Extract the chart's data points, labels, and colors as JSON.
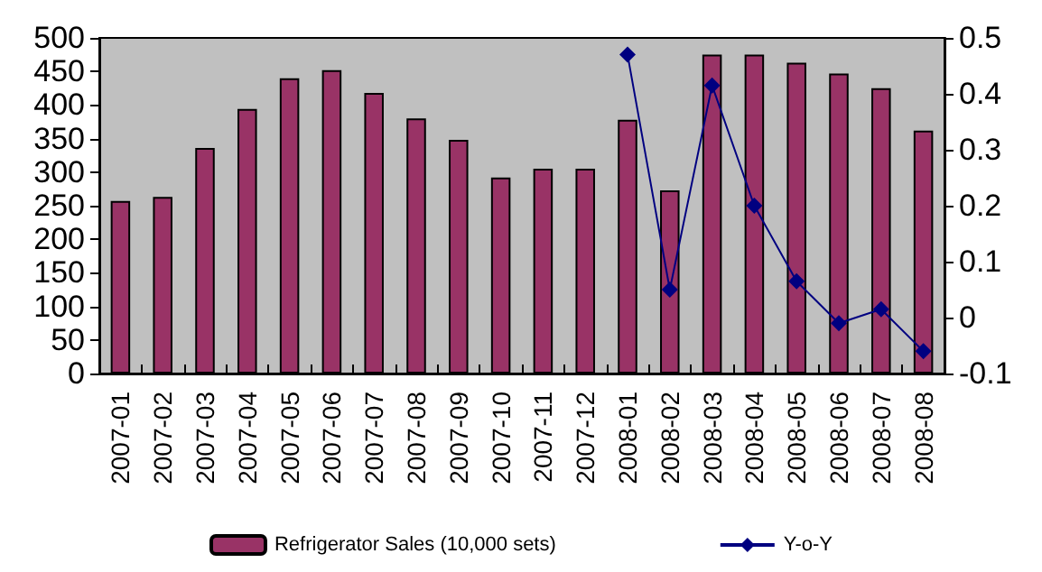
{
  "chart_data": {
    "type": "bar",
    "categories": [
      "2007-01",
      "2007-02",
      "2007-03",
      "2007-04",
      "2007-05",
      "2007-06",
      "2007-07",
      "2007-08",
      "2007-09",
      "2007-10",
      "2007-11",
      "2007-12",
      "2008-01",
      "2008-02",
      "2008-03",
      "2008-04",
      "2008-05",
      "2008-06",
      "2008-07",
      "2008-08"
    ],
    "series": [
      {
        "name": "Refrigerator Sales (10,000 sets)",
        "color": "#993366",
        "values": [
          257,
          263,
          336,
          394,
          440,
          452,
          418,
          380,
          348,
          292,
          305,
          305,
          378,
          273,
          475,
          475,
          463,
          447,
          425,
          362
        ]
      },
      {
        "name": "Y-o-Y",
        "type": "line",
        "axis": "y2",
        "color": "#000080",
        "values": [
          null,
          null,
          null,
          null,
          null,
          null,
          null,
          null,
          null,
          null,
          null,
          null,
          0.47,
          0.05,
          0.415,
          0.2,
          0.065,
          -0.01,
          0.015,
          -0.06
        ]
      }
    ],
    "ylim": [
      0,
      500
    ],
    "yticks": [
      0,
      50,
      100,
      150,
      200,
      250,
      300,
      350,
      400,
      450,
      500
    ],
    "y2lim": [
      -0.1,
      0.5
    ],
    "y2ticks": [
      -0.1,
      0,
      0.1,
      0.2,
      0.3,
      0.4,
      0.5
    ],
    "grid": false,
    "legend": "bottom",
    "marker": "diamond",
    "line_style": "solid"
  }
}
